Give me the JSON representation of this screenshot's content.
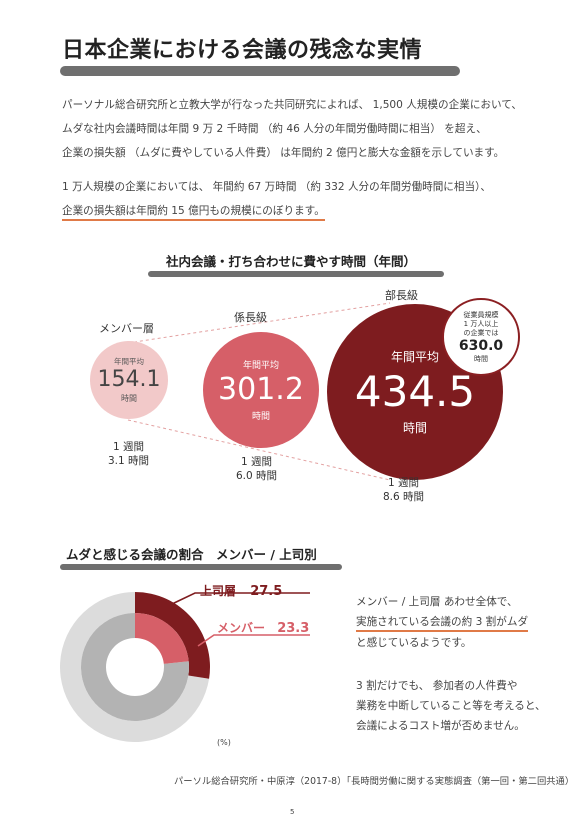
{
  "title": "日本企業における会議の残念な実情",
  "intro": {
    "line1": "パーソナル総合研究所と立教大学が行なった共同研究によれば、 1,500 人規模の企業において、",
    "line2": "ムダな社内会議時間は年間 9 万 2 千時間 （約 46 人分の年間労働時間に相当） を超え、",
    "line3": "企業の損失額 （ムダに費やしている人件費） は年間約 2 億円と膨大な金額を示しています。",
    "line4": "1 万人規模の企業においては、 年間約 67 万時間 （約 332 人分の年間労働時間に相当）、",
    "line5": "企業の損失額は年間約 15 億円もの規模にのぼります。"
  },
  "meeting_time": {
    "heading": "社内会議・打ち合わせに費やす時間（年間）",
    "groups": [
      {
        "label": "メンバー層",
        "avg_label": "年間平均",
        "value": "154.1",
        "unit": "時間",
        "week_line1": "1 週間",
        "week_line2": "3.1 時間",
        "color": "#f2c9c9"
      },
      {
        "label": "係長級",
        "avg_label": "年間平均",
        "value": "301.2",
        "unit": "時間",
        "week_line1": "1 週間",
        "week_line2": "6.0 時間",
        "color": "#d65f68"
      },
      {
        "label": "部長級",
        "avg_label": "年間平均",
        "value": "434.5",
        "unit": "時間",
        "week_line1": "1 週間",
        "week_line2": "8.6 時間",
        "color": "#7e1c1f"
      }
    ],
    "badge": {
      "line1": "従業員規模",
      "line2": "1 万人以上",
      "line3": "の企業では",
      "value": "630.0",
      "unit": "時間"
    }
  },
  "waste": {
    "heading": "ムダと感じる会議の割合　メンバー / 上司別",
    "unit_note": "(%)",
    "chart_data": {
      "type": "pie",
      "series": [
        {
          "name": "上司層",
          "value": 27.5,
          "color": "#7e1c1f"
        },
        {
          "name": "メンバー",
          "value": 23.3,
          "color": "#d65f68"
        }
      ],
      "remainder_colors": [
        "#dcdcdc",
        "#b3b3b3"
      ]
    },
    "boss_label": "上司層",
    "boss_value": "27.5",
    "member_label": "メンバー",
    "member_value": "23.3",
    "text": {
      "l1": "メンバー / 上司層 あわせ全体で、",
      "l2": "実施されている会議の約 3 割がムダ",
      "l3": "と感じているようです。",
      "l4": "3 割だけでも、 参加者の人件費や",
      "l5": "業務を中断していること等を考えると、",
      "l6": "会議によるコスト増が否めません。"
    }
  },
  "source": "パーソル総合研究所・中原淳（2017-8）「長時間労働に関する実態調査（第一回・第二回共通）",
  "page_number": "5"
}
